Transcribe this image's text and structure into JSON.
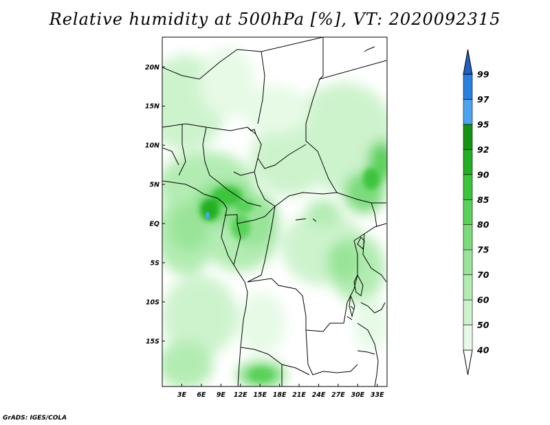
{
  "title": "Relative humidity at 500hPa [%], VT: 2020092315",
  "credit": "GrADS: IGES/COLA",
  "map": {
    "lon_range": [
      0,
      34.5
    ],
    "lat_range": [
      -20.8,
      23.8
    ],
    "x_ticks": [
      {
        "value": 3,
        "label": "3E"
      },
      {
        "value": 6,
        "label": "6E"
      },
      {
        "value": 9,
        "label": "9E"
      },
      {
        "value": 12,
        "label": "12E"
      },
      {
        "value": 15,
        "label": "15E"
      },
      {
        "value": 18,
        "label": "18E"
      },
      {
        "value": 21,
        "label": "21E"
      },
      {
        "value": 24,
        "label": "24E"
      },
      {
        "value": 27,
        "label": "27E"
      },
      {
        "value": 30,
        "label": "30E"
      },
      {
        "value": 33,
        "label": "33E"
      }
    ],
    "y_ticks": [
      {
        "value": 20,
        "label": "20N"
      },
      {
        "value": 15,
        "label": "15N"
      },
      {
        "value": 10,
        "label": "10N"
      },
      {
        "value": 5,
        "label": "5N"
      },
      {
        "value": 0,
        "label": "EQ"
      },
      {
        "value": -5,
        "label": "5S"
      },
      {
        "value": -10,
        "label": "10S"
      },
      {
        "value": -15,
        "label": "15S"
      }
    ]
  },
  "colorbar": {
    "levels": [
      "40",
      "50",
      "60",
      "70",
      "75",
      "80",
      "85",
      "90",
      "92",
      "95",
      "97",
      "99"
    ],
    "colors": [
      "#ffffff",
      "#e6fae6",
      "#cdf3cd",
      "#b3ecb3",
      "#99e499",
      "#7bdb7b",
      "#5ad25a",
      "#3cc43c",
      "#22b022",
      "#129612",
      "#4aa4f0",
      "#2a80e0",
      "#1f60c0"
    ]
  },
  "chart_data": {
    "type": "heatmap",
    "title": "Relative humidity at 500hPa [%], VT: 2020092315",
    "variable_unit": "%",
    "valid_time": "2020092315",
    "domain": {
      "lon": [
        0,
        34.5
      ],
      "lat": [
        -20.8,
        23.8
      ]
    },
    "levels": [
      40,
      50,
      60,
      70,
      75,
      80,
      85,
      90,
      92,
      95,
      97,
      99
    ],
    "humid_regions": [
      {
        "lon": 8.5,
        "lat": 4.0,
        "rh": 92
      },
      {
        "lon": 8.0,
        "lat": 2.5,
        "rh": 97
      },
      {
        "lon": 13.0,
        "lat": 2.0,
        "rh": 88
      },
      {
        "lon": 5.0,
        "lat": 0.0,
        "rh": 85
      },
      {
        "lon": 29.0,
        "lat": 3.5,
        "rh": 88
      },
      {
        "lon": 33.0,
        "lat": 9.0,
        "rh": 85
      },
      {
        "lon": 26.0,
        "lat": -4.0,
        "rh": 82
      },
      {
        "lon": 15.5,
        "lat": -18.5,
        "rh": 85
      },
      {
        "lon": 3.0,
        "lat": -14.0,
        "rh": 75
      },
      {
        "lon": 4.0,
        "lat": 18.0,
        "rh": 70
      }
    ]
  }
}
